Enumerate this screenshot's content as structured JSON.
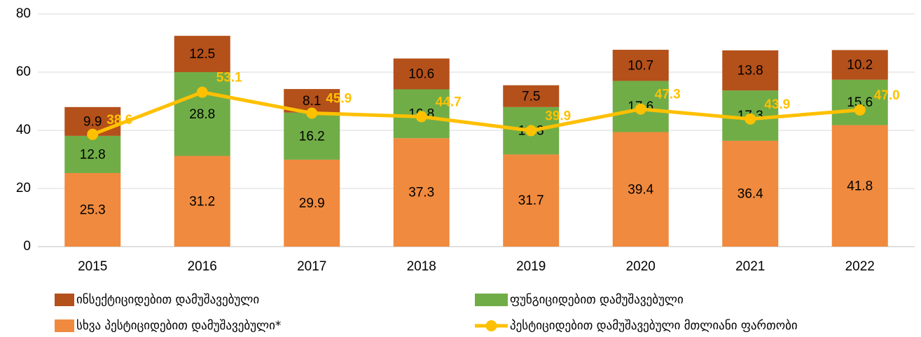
{
  "chart_data": {
    "type": "bar",
    "categories": [
      "2015",
      "2016",
      "2017",
      "2018",
      "2019",
      "2020",
      "2021",
      "2022"
    ],
    "series": [
      {
        "name": "ინსექტიციდებით დამუშავებული",
        "color": "#b4501a",
        "stack": true,
        "values": [
          9.9,
          12.5,
          8.1,
          10.6,
          7.5,
          10.7,
          13.8,
          10.2
        ]
      },
      {
        "name": "ფუნგიციდებით დამუშავებული",
        "color": "#70ad47",
        "stack": true,
        "values": [
          12.8,
          28.8,
          16.2,
          16.8,
          16.3,
          17.6,
          17.3,
          15.6
        ]
      },
      {
        "name": "სხვა პესტიციდებით დამუშავებული*",
        "color": "#f08a3e",
        "stack": true,
        "values": [
          25.3,
          31.2,
          29.9,
          37.3,
          31.7,
          39.4,
          36.4,
          41.8
        ]
      },
      {
        "name": "პესტიციდებით დამუშავებული მთლიანი ფართობი",
        "color": "#ffc000",
        "type": "line",
        "values": [
          38.6,
          53.1,
          45.9,
          44.7,
          39.9,
          47.3,
          43.9,
          47.0
        ],
        "value_labels": [
          "38.6",
          "53.1",
          "45.9",
          "44.7",
          "39.9",
          "47.3",
          "43.9",
          "47.0"
        ]
      }
    ],
    "ylim": [
      0,
      80
    ],
    "yticks": [
      0,
      20,
      40,
      60,
      80
    ],
    "grid": true,
    "legend": "bottom"
  }
}
